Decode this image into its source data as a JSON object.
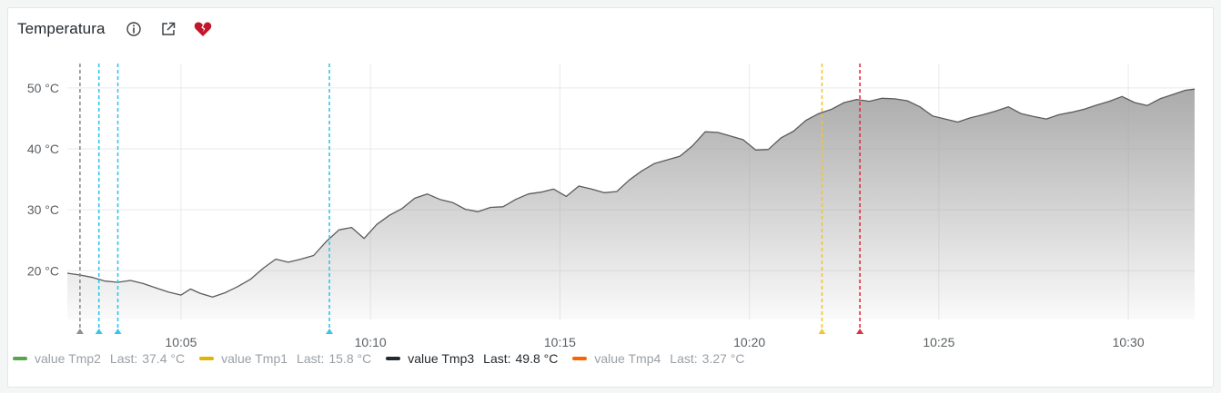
{
  "panel": {
    "title": "Temperatura",
    "icons": [
      "info-icon",
      "external-link-icon",
      "broken-heart-icon"
    ],
    "alert_color": "#c4162a"
  },
  "legend": [
    {
      "name": "value Tmp2",
      "last_label": "Last:",
      "last": "37.4 °C",
      "color": "#56a64b",
      "active": false
    },
    {
      "name": "value Tmp1",
      "last_label": "Last:",
      "last": "15.8 °C",
      "color": "#e0b400",
      "active": false
    },
    {
      "name": "value Tmp3",
      "last_label": "Last:",
      "last": "49.8 °C",
      "color": "#24292e",
      "active": true
    },
    {
      "name": "value Tmp4",
      "last_label": "Last:",
      "last": "3.27 °C",
      "color": "#fa6400",
      "active": false
    }
  ],
  "chart_data": {
    "type": "area",
    "unit": "°C",
    "xlim": [
      "10:02:00",
      "10:31:45"
    ],
    "ylim": [
      12.0,
      54.0
    ],
    "yticks": [
      20,
      30,
      40,
      50
    ],
    "ytick_labels": [
      "20 °C",
      "30 °C",
      "40 °C",
      "50 °C"
    ],
    "xticks": [
      "10:05",
      "10:10",
      "10:15",
      "10:20",
      "10:25",
      "10:30"
    ],
    "grid": true,
    "series": [
      {
        "name": "value Tmp3",
        "color": "#5b5b5b",
        "points": [
          [
            "10:02:00",
            19.6
          ],
          [
            "10:02:20",
            19.3
          ],
          [
            "10:02:40",
            18.9
          ],
          [
            "10:03:00",
            18.3
          ],
          [
            "10:03:20",
            18.1
          ],
          [
            "10:03:40",
            18.4
          ],
          [
            "10:04:00",
            17.9
          ],
          [
            "10:04:20",
            17.2
          ],
          [
            "10:04:40",
            16.5
          ],
          [
            "10:05:00",
            16.0
          ],
          [
            "10:05:15",
            17.0
          ],
          [
            "10:05:30",
            16.3
          ],
          [
            "10:05:50",
            15.7
          ],
          [
            "10:06:10",
            16.4
          ],
          [
            "10:06:30",
            17.4
          ],
          [
            "10:06:50",
            18.6
          ],
          [
            "10:07:10",
            20.4
          ],
          [
            "10:07:30",
            21.9
          ],
          [
            "10:07:50",
            21.4
          ],
          [
            "10:08:10",
            21.9
          ],
          [
            "10:08:30",
            22.5
          ],
          [
            "10:08:50",
            24.8
          ],
          [
            "10:09:10",
            26.7
          ],
          [
            "10:09:30",
            27.1
          ],
          [
            "10:09:50",
            25.3
          ],
          [
            "10:10:10",
            27.6
          ],
          [
            "10:10:30",
            29.1
          ],
          [
            "10:10:50",
            30.2
          ],
          [
            "10:11:10",
            31.9
          ],
          [
            "10:11:30",
            32.6
          ],
          [
            "10:11:50",
            31.7
          ],
          [
            "10:12:10",
            31.2
          ],
          [
            "10:12:30",
            30.1
          ],
          [
            "10:12:50",
            29.7
          ],
          [
            "10:13:10",
            30.4
          ],
          [
            "10:13:30",
            30.5
          ],
          [
            "10:13:50",
            31.7
          ],
          [
            "10:14:10",
            32.6
          ],
          [
            "10:14:30",
            32.9
          ],
          [
            "10:14:50",
            33.4
          ],
          [
            "10:15:10",
            32.2
          ],
          [
            "10:15:30",
            33.9
          ],
          [
            "10:15:50",
            33.4
          ],
          [
            "10:16:10",
            32.8
          ],
          [
            "10:16:30",
            33.0
          ],
          [
            "10:16:50",
            34.9
          ],
          [
            "10:17:10",
            36.4
          ],
          [
            "10:17:30",
            37.6
          ],
          [
            "10:17:50",
            38.2
          ],
          [
            "10:18:10",
            38.8
          ],
          [
            "10:18:30",
            40.5
          ],
          [
            "10:18:50",
            42.8
          ],
          [
            "10:19:10",
            42.7
          ],
          [
            "10:19:30",
            42.1
          ],
          [
            "10:19:50",
            41.5
          ],
          [
            "10:20:10",
            39.8
          ],
          [
            "10:20:30",
            39.9
          ],
          [
            "10:20:50",
            41.8
          ],
          [
            "10:21:10",
            42.9
          ],
          [
            "10:21:30",
            44.7
          ],
          [
            "10:21:50",
            45.8
          ],
          [
            "10:22:10",
            46.5
          ],
          [
            "10:22:30",
            47.6
          ],
          [
            "10:22:50",
            48.1
          ],
          [
            "10:23:10",
            47.8
          ],
          [
            "10:23:30",
            48.3
          ],
          [
            "10:23:50",
            48.2
          ],
          [
            "10:24:10",
            47.9
          ],
          [
            "10:24:30",
            46.9
          ],
          [
            "10:24:50",
            45.4
          ],
          [
            "10:25:10",
            44.9
          ],
          [
            "10:25:30",
            44.4
          ],
          [
            "10:25:50",
            45.1
          ],
          [
            "10:26:10",
            45.6
          ],
          [
            "10:26:30",
            46.2
          ],
          [
            "10:26:50",
            46.9
          ],
          [
            "10:27:10",
            45.8
          ],
          [
            "10:27:30",
            45.3
          ],
          [
            "10:27:50",
            44.9
          ],
          [
            "10:28:10",
            45.6
          ],
          [
            "10:28:30",
            46.0
          ],
          [
            "10:28:50",
            46.5
          ],
          [
            "10:29:10",
            47.2
          ],
          [
            "10:29:30",
            47.8
          ],
          [
            "10:29:50",
            48.6
          ],
          [
            "10:30:10",
            47.6
          ],
          [
            "10:30:30",
            47.1
          ],
          [
            "10:30:50",
            48.2
          ],
          [
            "10:31:10",
            48.9
          ],
          [
            "10:31:30",
            49.6
          ],
          [
            "10:31:45",
            49.8
          ]
        ]
      }
    ],
    "annotations": [
      {
        "time": "10:02:20",
        "color": "#8e8e8e"
      },
      {
        "time": "10:02:50",
        "color": "#33c6ee"
      },
      {
        "time": "10:03:20",
        "color": "#33c6ee"
      },
      {
        "time": "10:08:55",
        "color": "#33c6ee"
      },
      {
        "time": "10:21:55",
        "color": "#f2c631"
      },
      {
        "time": "10:22:55",
        "color": "#e0303b"
      }
    ]
  }
}
